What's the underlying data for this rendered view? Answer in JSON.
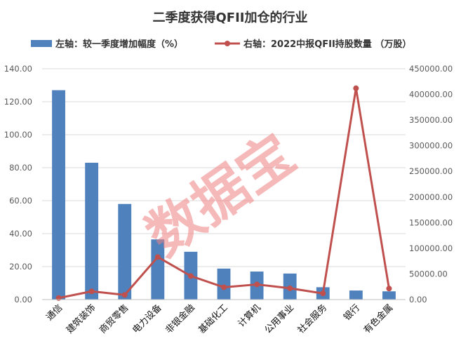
{
  "chart_data": {
    "type": "bar",
    "title": "二季度获得QFII加仓的行业",
    "categories": [
      "通信",
      "建筑装饰",
      "商贸零售",
      "电力设备",
      "非银金融",
      "基础化工",
      "计算机",
      "公用事业",
      "社会服务",
      "银行",
      "有色金属"
    ],
    "series": [
      {
        "name": "左轴：较一季度增加幅度（%）",
        "type": "bar",
        "axis": "left",
        "color": "#4f81bd",
        "values": [
          127.0,
          83.0,
          58.0,
          36.5,
          29.0,
          18.8,
          17.0,
          15.8,
          7.5,
          5.5,
          5.0
        ]
      },
      {
        "name": "右轴：2022中报QFII持股数量 （万股）",
        "type": "line",
        "axis": "right",
        "color": "#c0504d",
        "values": [
          3000,
          16000,
          9000,
          83000,
          46000,
          24000,
          29500,
          22000,
          12000,
          412000,
          21500
        ]
      }
    ],
    "y_left": {
      "min": 0,
      "max": 140,
      "step": 20,
      "ticks": [
        "0.00",
        "20.00",
        "40.00",
        "60.00",
        "80.00",
        "100.00",
        "120.00",
        "140.00"
      ]
    },
    "y_right": {
      "min": 0,
      "max": 450000,
      "step": 50000,
      "ticks": [
        "0.00",
        "50000.00",
        "100000.00",
        "150000.00",
        "200000.00",
        "250000.00",
        "300000.00",
        "350000.00",
        "400000.00",
        "450000.00"
      ]
    },
    "grid": true,
    "legend_position": "top",
    "watermark": "数据宝"
  }
}
